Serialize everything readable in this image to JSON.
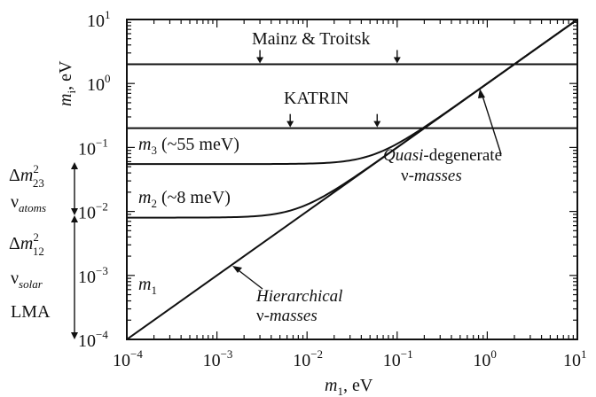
{
  "chart_data": {
    "type": "line",
    "x_scale": "log",
    "y_scale": "log",
    "xlim": [
      0.0001,
      10
    ],
    "ylim": [
      0.0001,
      10
    ],
    "xlabel": {
      "var": "m",
      "sub": "1",
      "unit": ", eV"
    },
    "ylabel": {
      "var": "m",
      "sub": "i",
      "unit": ", eV"
    },
    "x_ticks": [
      {
        "value": 0.0001,
        "base": "10",
        "exp": "−4"
      },
      {
        "value": 0.001,
        "base": "10",
        "exp": "−3"
      },
      {
        "value": 0.01,
        "base": "10",
        "exp": "−2"
      },
      {
        "value": 0.1,
        "base": "10",
        "exp": "−1"
      },
      {
        "value": 1,
        "base": "10",
        "exp": "0"
      },
      {
        "value": 10,
        "base": "10",
        "exp": "1"
      }
    ],
    "y_ticks": [
      {
        "value": 0.0001,
        "base": "10",
        "exp": "−4"
      },
      {
        "value": 0.001,
        "base": "10",
        "exp": "−3"
      },
      {
        "value": 0.01,
        "base": "10",
        "exp": "−2"
      },
      {
        "value": 0.1,
        "base": "10",
        "exp": "−1"
      },
      {
        "value": 1,
        "base": "10",
        "exp": "0"
      },
      {
        "value": 10,
        "base": "10",
        "exp": "1"
      }
    ],
    "series": [
      {
        "name": "m1",
        "x": [
          0.0001,
          10
        ],
        "y": [
          0.0001,
          10
        ]
      },
      {
        "name": "m2 (~8 meV)",
        "offset": 0.008,
        "x_from": 0.0001,
        "x_to": 10
      },
      {
        "name": "m3 (~55 meV)",
        "offset": 0.055,
        "x_from": 0.0001,
        "x_to": 10
      }
    ],
    "limits": [
      {
        "name": "Mainz & Troitsk",
        "y": 2,
        "arrows_x": [
          0.003,
          0.1
        ]
      },
      {
        "name": "KATRIN",
        "y": 0.2,
        "arrows_x": [
          0.0065,
          0.06
        ]
      }
    ],
    "labels": {
      "m3": {
        "var": "m",
        "sub": "3",
        "rest": " (~55 meV)"
      },
      "m2": {
        "var": "m",
        "sub": "2",
        "rest": " (~8 meV)"
      },
      "m1": {
        "var": "m",
        "sub": "1"
      },
      "mainz": "Mainz & Troitsk",
      "katrin": "KATRIN",
      "hier_1": "Hierarchical",
      "hier_2_nu": "ν-",
      "hier_2_word": "masses",
      "quasi_1a": "Quasi",
      "quasi_1b": "-degenerate",
      "quasi_2_nu": "ν-",
      "quasi_2_word": "masses"
    },
    "left_annotations": {
      "dm23": {
        "delta": "Δ",
        "var": "m",
        "sup": "2",
        "sub": "23"
      },
      "nu_atoms": {
        "nu": "ν",
        "sub": "atoms"
      },
      "dm12": {
        "delta": "Δ",
        "var": "m",
        "sup": "2",
        "sub": "12"
      },
      "nu_solar": {
        "nu": "ν",
        "sub": "solar"
      },
      "lma": "LMA"
    }
  }
}
